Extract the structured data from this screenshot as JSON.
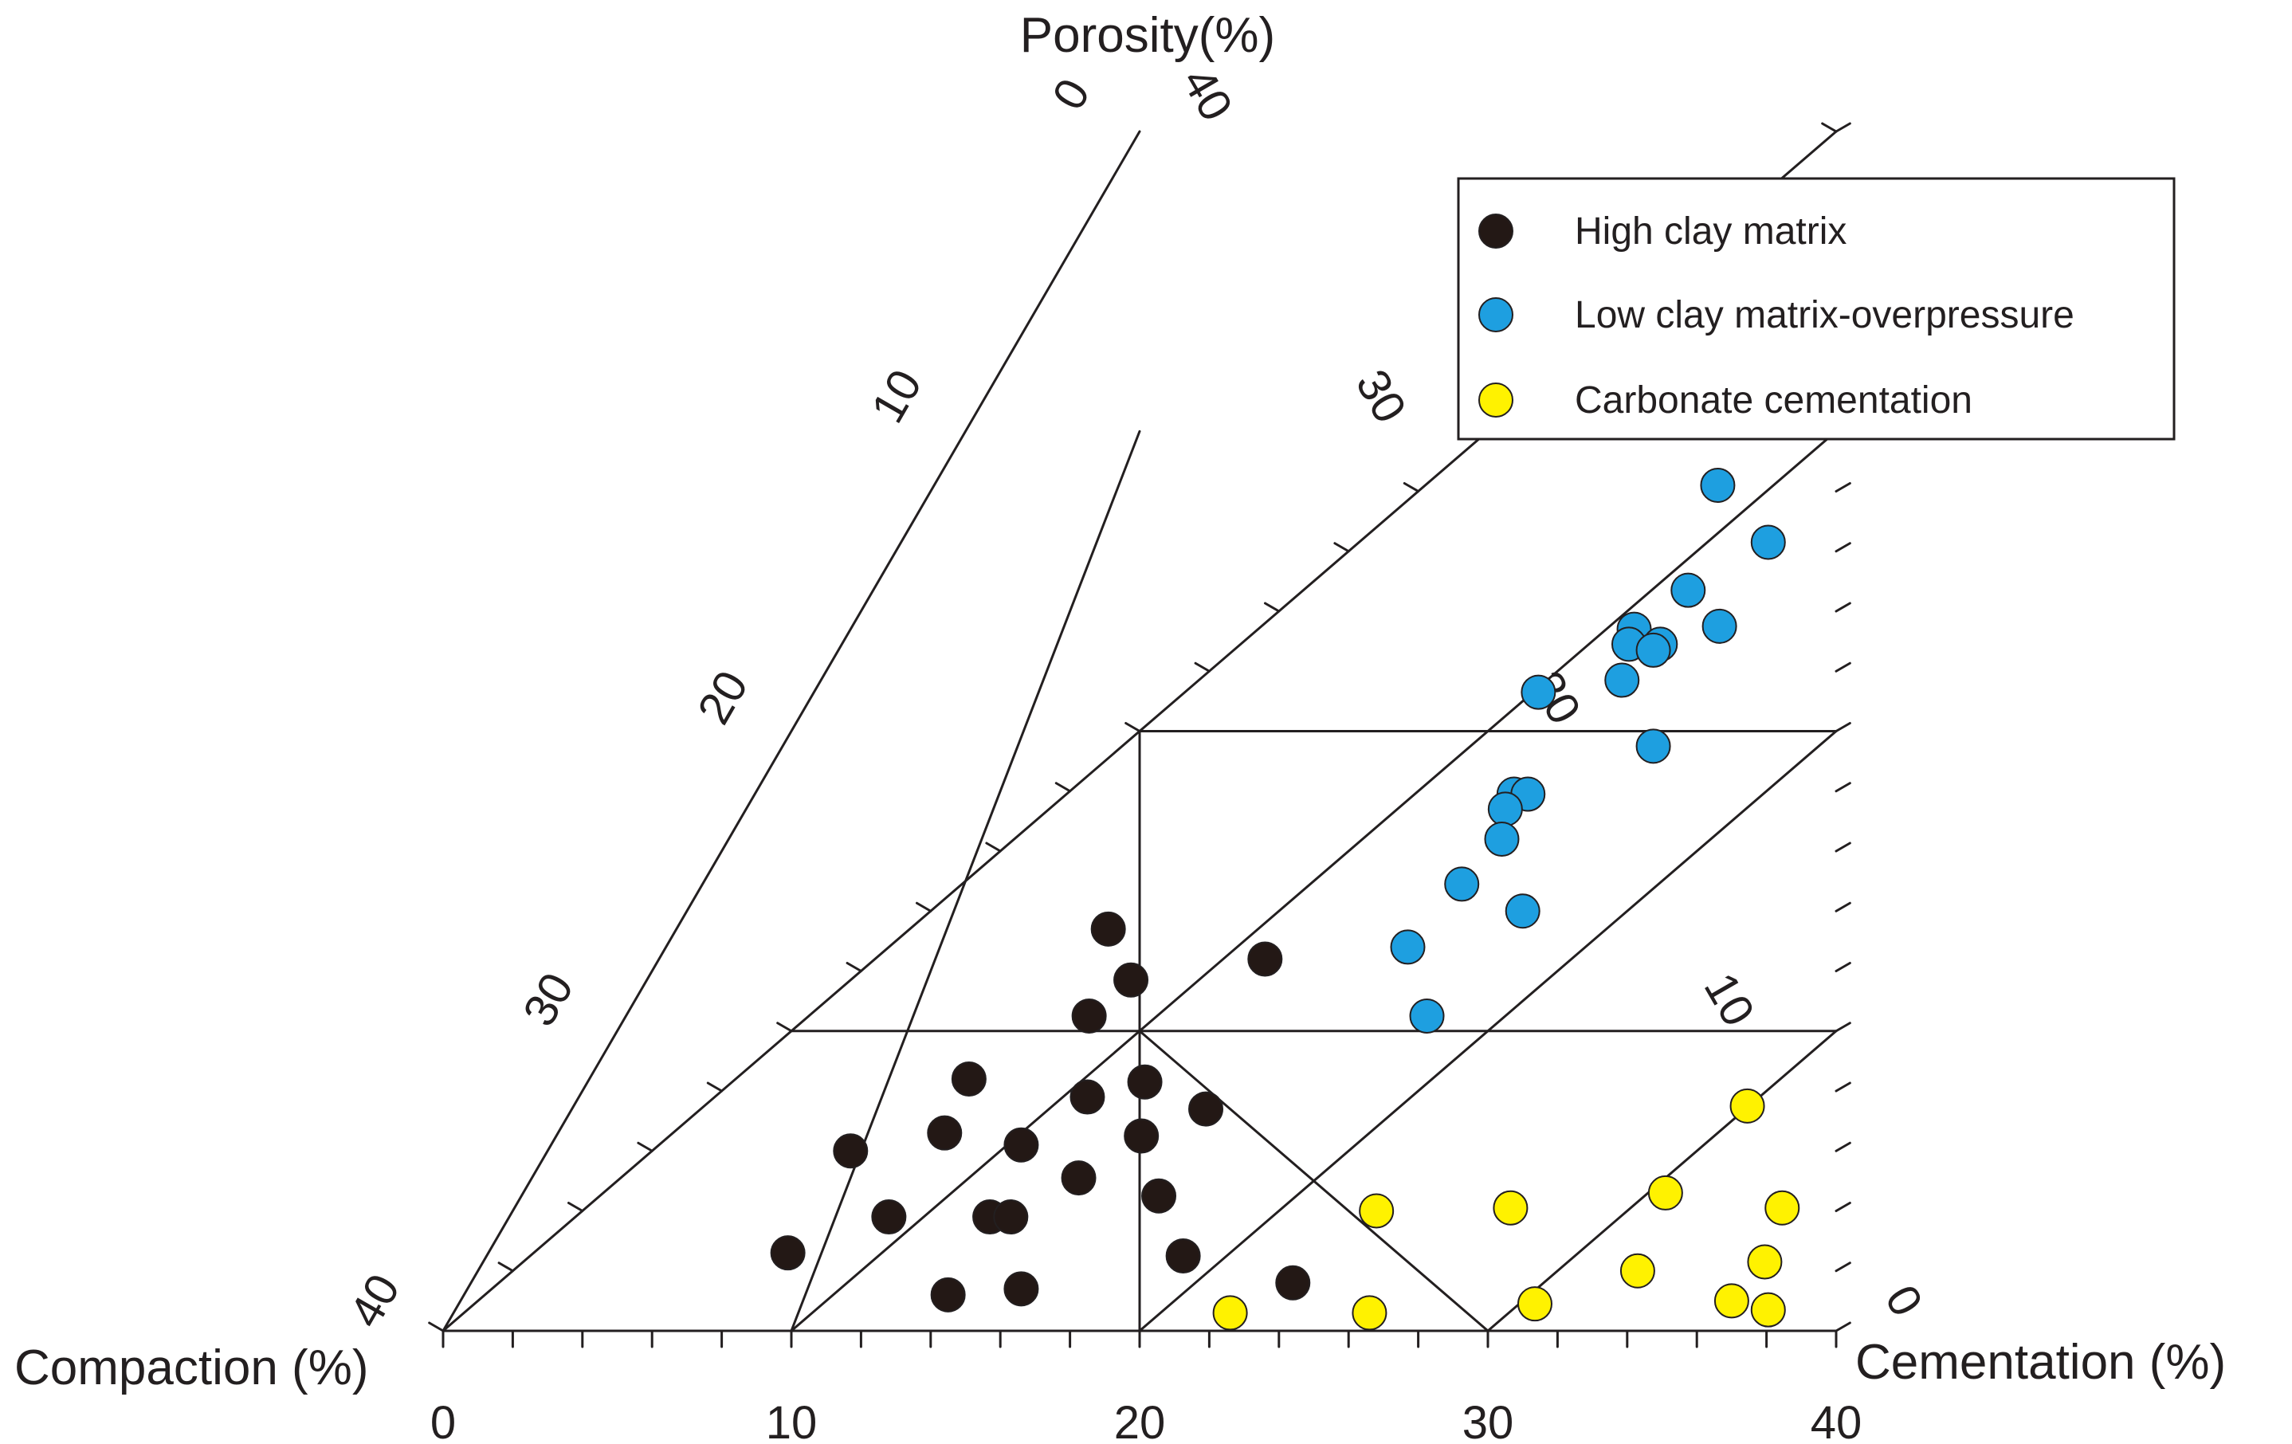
{
  "chart_data": {
    "type": "ternary-scatter",
    "axes": {
      "top": {
        "label": "Porosity(%)",
        "min": 0,
        "max": 40
      },
      "left": {
        "label": "Compaction (%)",
        "min": 0,
        "max": 40
      },
      "right": {
        "label": "Cementation (%)",
        "min": 0,
        "max": 40
      },
      "bottom_ticks": [
        "0",
        "10",
        "20",
        "30",
        "40"
      ],
      "left_edge_ticks": [
        "0",
        "10",
        "20",
        "30",
        "40"
      ],
      "right_edge_ticks": [
        "40",
        "30",
        "20",
        "10",
        "0"
      ],
      "grid": true,
      "minor_ticks_per_major": 4
    },
    "legend": {
      "position": "top-right",
      "entries": [
        {
          "key": "high_clay",
          "label": "High clay matrix",
          "color": "#231815"
        },
        {
          "key": "low_clay",
          "label": "Low clay matrix-overpressure",
          "color": "#1e9fe0"
        },
        {
          "key": "carbonate",
          "label": "Carbonate cementation",
          "color": "#fff200"
        }
      ]
    },
    "series": [
      {
        "key": "high_clay",
        "name": "High clay matrix",
        "color": "#231815",
        "points": [
          {
            "x": 12.4,
            "y": 13.4
          },
          {
            "x": 17.4,
            "y": 12.4
          },
          {
            "x": 13.9,
            "y": 11.7
          },
          {
            "x": 13.3,
            "y": 10.5
          },
          {
            "x": 10.9,
            "y": 8.4
          },
          {
            "x": 16.0,
            "y": 8.3
          },
          {
            "x": 14.6,
            "y": 7.8
          },
          {
            "x": 18.2,
            "y": 7.4
          },
          {
            "x": 11.1,
            "y": 6.6
          },
          {
            "x": 16.8,
            "y": 6.5
          },
          {
            "x": 8.7,
            "y": 6.0
          },
          {
            "x": 13.5,
            "y": 6.2
          },
          {
            "x": 15.7,
            "y": 5.1
          },
          {
            "x": 18.3,
            "y": 4.5
          },
          {
            "x": 10.9,
            "y": 3.8
          },
          {
            "x": 13.8,
            "y": 3.8
          },
          {
            "x": 14.4,
            "y": 3.8
          },
          {
            "x": 8.6,
            "y": 2.6
          },
          {
            "x": 20.0,
            "y": 2.5
          },
          {
            "x": 23.6,
            "y": 1.6
          },
          {
            "x": 13.9,
            "y": 1.2
          },
          {
            "x": 15.9,
            "y": 1.4
          }
        ]
      },
      {
        "key": "low_clay",
        "name": "Low clay matrix-overpressure",
        "color": "#1e9fe0",
        "points": [
          {
            "x": 22.5,
            "y": 28.2
          },
          {
            "x": 24.9,
            "y": 26.3
          },
          {
            "x": 23.4,
            "y": 24.7
          },
          {
            "x": 22.5,
            "y": 23.4
          },
          {
            "x": 23.5,
            "y": 22.9
          },
          {
            "x": 24.9,
            "y": 23.5
          },
          {
            "x": 22.6,
            "y": 22.9
          },
          {
            "x": 23.4,
            "y": 22.7
          },
          {
            "x": 23.0,
            "y": 21.7
          },
          {
            "x": 20.8,
            "y": 21.3
          },
          {
            "x": 25.0,
            "y": 19.5
          },
          {
            "x": 21.8,
            "y": 17.9
          },
          {
            "x": 22.2,
            "y": 17.9
          },
          {
            "x": 21.8,
            "y": 17.4
          },
          {
            "x": 22.2,
            "y": 16.4
          },
          {
            "x": 21.8,
            "y": 14.9
          },
          {
            "x": 24.0,
            "y": 14.0
          },
          {
            "x": 21.3,
            "y": 12.8
          },
          {
            "x": 23.0,
            "y": 10.5
          }
        ]
      },
      {
        "key": "carbonate",
        "name": "Carbonate cementation",
        "color": "#fff200",
        "points": [
          {
            "x": 33.7,
            "y": 7.5
          },
          {
            "x": 32.8,
            "y": 4.6
          },
          {
            "x": 28.6,
            "y": 4.1
          },
          {
            "x": 36.4,
            "y": 4.1
          },
          {
            "x": 24.8,
            "y": 4.0
          },
          {
            "x": 33.3,
            "y": 2.0
          },
          {
            "x": 36.8,
            "y": 2.3
          },
          {
            "x": 30.9,
            "y": 0.9
          },
          {
            "x": 36.5,
            "y": 1.0
          },
          {
            "x": 37.7,
            "y": 0.7
          },
          {
            "x": 22.3,
            "y": 0.6
          },
          {
            "x": 26.3,
            "y": 0.6
          }
        ]
      }
    ]
  }
}
